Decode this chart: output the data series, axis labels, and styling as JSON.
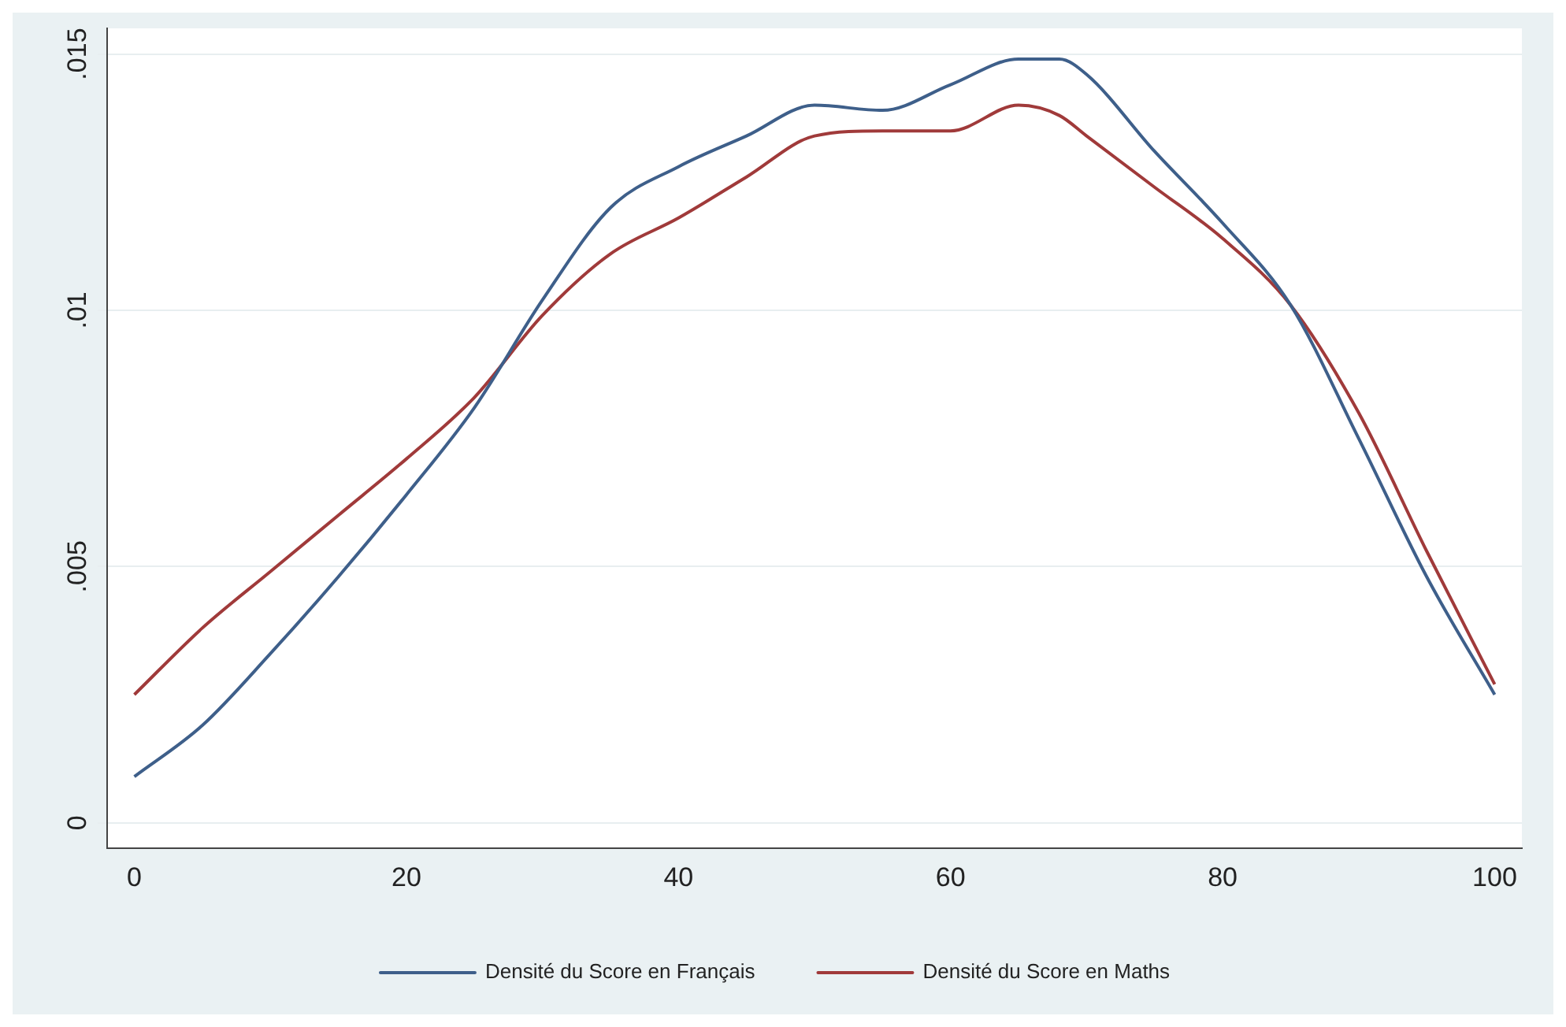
{
  "chart_data": {
    "type": "line",
    "x": [
      0,
      5,
      10,
      15,
      20,
      25,
      30,
      35,
      40,
      45,
      50,
      55,
      60,
      65,
      68,
      70,
      75,
      80,
      85,
      90,
      95,
      100
    ],
    "series": [
      {
        "name": "Densité du Score en Français",
        "color": "#3e5f8a",
        "values": [
          0.0009,
          0.0019,
          0.0033,
          0.0048,
          0.0064,
          0.0081,
          0.0102,
          0.012,
          0.0128,
          0.0134,
          0.014,
          0.0139,
          0.0144,
          0.0149,
          0.0149,
          0.0146,
          0.0131,
          0.0117,
          0.0101,
          0.0075,
          0.0048,
          0.0025
        ]
      },
      {
        "name": "Densité du Score en Maths",
        "color": "#a03a3a",
        "values": [
          0.0025,
          0.0038,
          0.0049,
          0.006,
          0.0071,
          0.0083,
          0.0099,
          0.0111,
          0.0118,
          0.0126,
          0.0134,
          0.0135,
          0.0135,
          0.014,
          0.0138,
          0.0134,
          0.0124,
          0.0114,
          0.0101,
          0.008,
          0.0053,
          0.0027
        ]
      }
    ],
    "xlim": [
      -2,
      102
    ],
    "xticks": [
      0,
      20,
      40,
      60,
      80,
      100
    ],
    "ylim": [
      -0.0005,
      0.0155
    ],
    "yticks": [
      {
        "value": 0,
        "label": "0"
      },
      {
        "value": 0.005,
        "label": ".005"
      },
      {
        "value": 0.01,
        "label": ".01"
      },
      {
        "value": 0.015,
        "label": ".015"
      }
    ],
    "grid": "y",
    "legend": "bottom",
    "marker": "none",
    "line_style": "solid"
  }
}
